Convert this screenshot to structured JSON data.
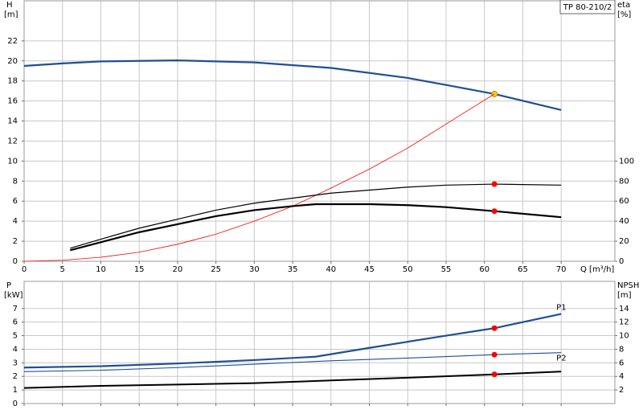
{
  "chart_data": [
    {
      "type": "line",
      "title": "TP 80-210/2",
      "xlabel": "Q [m³/h]",
      "ylabel": "H",
      "yunit": "[m]",
      "y2label": "eta",
      "y2unit": "[%]",
      "xlim": [
        0,
        77
      ],
      "xticks": [
        0,
        5,
        10,
        15,
        20,
        25,
        30,
        35,
        40,
        45,
        50,
        55,
        60,
        65,
        70
      ],
      "ylim": [
        0,
        26
      ],
      "yticks": [
        0,
        2,
        4,
        6,
        8,
        10,
        12,
        14,
        16,
        18,
        20,
        22
      ],
      "y2lim": [
        0,
        260
      ],
      "y2ticks": [
        0,
        20,
        40,
        60,
        80,
        100
      ],
      "grid": true,
      "highlight_x": 61.3,
      "series": [
        {
          "color": "#1f4f96",
          "width": 2.2,
          "marker_color": "#ffd400",
          "x": [
            0,
            5,
            10,
            20,
            30,
            40,
            50,
            55,
            61.3,
            70
          ],
          "y": [
            19.5,
            19.75,
            19.95,
            20.05,
            19.85,
            19.3,
            18.3,
            17.6,
            16.7,
            15.1
          ]
        },
        {
          "color": "#ff0000",
          "width": 0.8,
          "x": [
            0,
            5,
            10,
            15,
            20,
            25,
            30,
            35,
            40,
            45,
            50,
            55,
            61.3
          ],
          "y": [
            0,
            0.1,
            0.4,
            0.9,
            1.7,
            2.7,
            4.0,
            5.5,
            7.3,
            9.2,
            11.3,
            13.7,
            16.7
          ]
        },
        {
          "color": "#000000",
          "width": 1.2,
          "axis": "y2",
          "marker_color": "#ff0000",
          "x": [
            6,
            10,
            15,
            20,
            25,
            30,
            35,
            40,
            45,
            50,
            55,
            61.3,
            70
          ],
          "y": [
            13,
            22,
            33,
            42,
            51,
            58,
            63,
            68,
            71,
            74,
            76,
            77,
            76
          ]
        },
        {
          "color": "#000000",
          "width": 2.2,
          "axis": "y2",
          "marker_color": "#ff0000",
          "x": [
            6,
            10,
            15,
            20,
            25,
            30,
            35,
            38,
            45,
            50,
            55,
            61.3,
            70
          ],
          "y": [
            11,
            19,
            29,
            37,
            45,
            51,
            55,
            57,
            57,
            56,
            54,
            50,
            44
          ]
        }
      ]
    },
    {
      "type": "line",
      "ylabel": "P",
      "yunit": "[kW]",
      "y2label": "NPSH",
      "y2unit": "[m]",
      "xlim": [
        0,
        77
      ],
      "ylim": [
        0,
        9
      ],
      "yticks": [
        0,
        1,
        2,
        3,
        4,
        5,
        6,
        7
      ],
      "y2lim": [
        0,
        18
      ],
      "y2ticks": [
        2,
        4,
        6,
        8,
        10,
        12,
        14
      ],
      "grid": true,
      "highlight_x": 61.3,
      "series": [
        {
          "name": "P1",
          "color": "#1f4f96",
          "width": 2.2,
          "marker_color": "#ff0000",
          "x": [
            0,
            10,
            20,
            30,
            38,
            45,
            50,
            55,
            61.3,
            70
          ],
          "y": [
            2.65,
            2.75,
            2.95,
            3.2,
            3.45,
            4.1,
            4.55,
            5.0,
            5.55,
            6.6
          ]
        },
        {
          "name": "P2",
          "color": "#1f4f96",
          "width": 1.1,
          "marker_color": "#ff0000",
          "x": [
            0,
            10,
            20,
            30,
            40,
            50,
            61.3,
            70
          ],
          "y": [
            2.35,
            2.45,
            2.65,
            2.9,
            3.15,
            3.35,
            3.6,
            3.75
          ]
        },
        {
          "color": "#000000",
          "width": 2,
          "axis": "y2",
          "marker_color": "#ff0000",
          "x": [
            0,
            10,
            20,
            30,
            40,
            50,
            61.3,
            70
          ],
          "y": [
            2.3,
            2.6,
            2.8,
            3.0,
            3.4,
            3.8,
            4.3,
            4.7
          ]
        }
      ]
    }
  ]
}
